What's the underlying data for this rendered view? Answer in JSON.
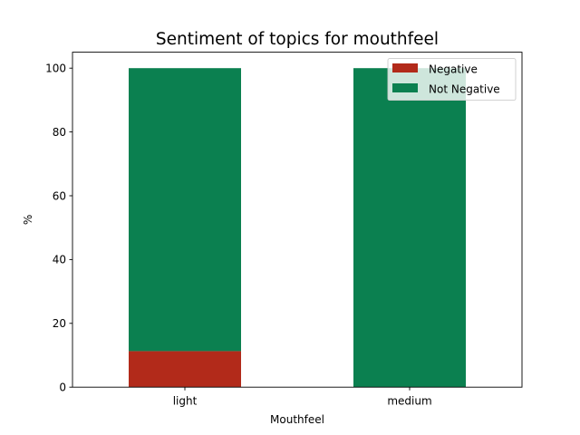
{
  "chart_data": {
    "type": "bar",
    "stacked": true,
    "title": "Sentiment of topics for mouthfeel",
    "xlabel": "Mouthfeel",
    "ylabel": "%",
    "ylim": [
      0,
      105
    ],
    "yticks": [
      0,
      20,
      40,
      60,
      80,
      100
    ],
    "categories": [
      "light",
      "medium"
    ],
    "series": [
      {
        "name": "Negative",
        "color": "#b22a1a",
        "values": [
          11.3,
          0
        ]
      },
      {
        "name": "Not Negative",
        "color": "#0b8050",
        "values": [
          88.7,
          100
        ]
      }
    ],
    "legend_position": "top-right"
  }
}
